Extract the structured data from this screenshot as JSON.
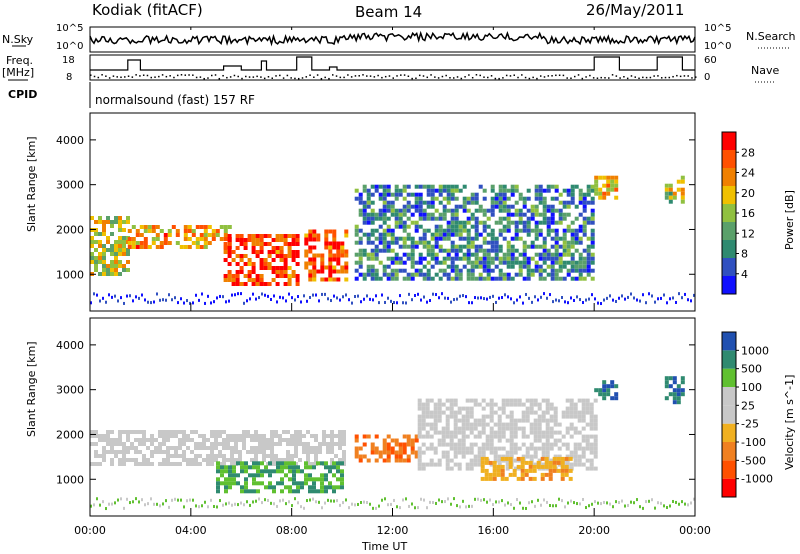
{
  "header": {
    "station": "Kodiak (fitACF)",
    "beam": "Beam 14",
    "date": "26/May/2011"
  },
  "side_labels": {
    "nsky": "N.Sky",
    "freq": "Freq.",
    "freq_unit": "[MHz]",
    "cpid": "CPID",
    "nsearch": "N.Search",
    "nave": "Nave",
    "cpid_text": "normalsound (fast) 157 RF"
  },
  "top_ticks": {
    "nsky_hi": "10^5",
    "nsky_lo": "10^0",
    "nsearch_hi": "10^5",
    "nsearch_lo": "10^0",
    "freq_hi": "18",
    "freq_lo": "8",
    "nave_hi": "60",
    "nave_lo": "0"
  },
  "colors": {
    "power": [
      "#1010ff",
      "#3050c0",
      "#2f8a70",
      "#5aa06a",
      "#90c040",
      "#f0c000",
      "#f08000",
      "#ff5000",
      "#ff0000"
    ],
    "velocity": [
      "#ff0000",
      "#ff5000",
      "#f08020",
      "#f0b020",
      "#c8c8c8",
      "#c8c8c8",
      "#60c030",
      "#2f8a70",
      "#2050b0"
    ],
    "ground_scatter": "#c8c8c8"
  },
  "chart_data": [
    {
      "type": "heatmap",
      "title": "Power",
      "xlabel": "",
      "ylabel": "Slant Range [km]",
      "xlim": [
        "00:00",
        "24:00"
      ],
      "ylim": [
        180,
        4600
      ],
      "yticks": [
        "1000",
        "2000",
        "3000",
        "4000"
      ],
      "colorbar_label": "Power [dB]",
      "colorbar_ticks": [
        "4",
        "8",
        "12",
        "16",
        "20",
        "24",
        "28"
      ],
      "colorbar_range": [
        0,
        32
      ],
      "regions": [
        {
          "t0": 0.0,
          "t1": 1.5,
          "r0": 1000,
          "r1": 2300,
          "level": 18
        },
        {
          "t0": 1.5,
          "t1": 5.5,
          "r0": 1600,
          "r1": 2100,
          "level": 22
        },
        {
          "t0": 5.3,
          "t1": 8.2,
          "r0": 800,
          "r1": 1900,
          "level": 28
        },
        {
          "t0": 8.5,
          "t1": 10.2,
          "r0": 900,
          "r1": 2000,
          "level": 27
        },
        {
          "t0": 10.5,
          "t1": 20.0,
          "r0": 900,
          "r1": 3000,
          "level": 9
        },
        {
          "t0": 20.0,
          "t1": 20.8,
          "r0": 2700,
          "r1": 3200,
          "level": 20
        },
        {
          "t0": 22.8,
          "t1": 23.5,
          "r0": 2600,
          "r1": 3200,
          "level": 16
        }
      ]
    },
    {
      "type": "heatmap",
      "title": "Velocity",
      "xlabel": "Time UT",
      "ylabel": "Slant Range [km]",
      "xlim": [
        "00:00",
        "24:00"
      ],
      "ylim": [
        180,
        4600
      ],
      "xticks": [
        "00:00",
        "04:00",
        "08:00",
        "12:00",
        "16:00",
        "20:00",
        "00:00"
      ],
      "yticks": [
        "1000",
        "2000",
        "3000",
        "4000"
      ],
      "colorbar_label": "Velocity [m s^-1]",
      "colorbar_ticks": [
        "1000",
        "500",
        "100",
        "25",
        "-25",
        "-100",
        "-500",
        "-1000"
      ],
      "regions": [
        {
          "t0": 0.0,
          "t1": 10.0,
          "r0": 1300,
          "r1": 2100,
          "kind": "ground"
        },
        {
          "t0": 5.0,
          "t1": 10.0,
          "r0": 700,
          "r1": 1400,
          "kind": "positive"
        },
        {
          "t0": 10.5,
          "t1": 13.0,
          "r0": 1400,
          "r1": 2000,
          "kind": "negative"
        },
        {
          "t0": 13.0,
          "t1": 20.0,
          "r0": 1200,
          "r1": 2800,
          "kind": "ground"
        },
        {
          "t0": 15.5,
          "t1": 19.0,
          "r0": 1000,
          "r1": 1500,
          "kind": "negative_weak"
        },
        {
          "t0": 20.0,
          "t1": 20.8,
          "r0": 2800,
          "r1": 3300,
          "kind": "positive_strong"
        },
        {
          "t0": 22.8,
          "t1": 23.5,
          "r0": 2700,
          "r1": 3300,
          "kind": "positive_strong"
        }
      ]
    }
  ]
}
